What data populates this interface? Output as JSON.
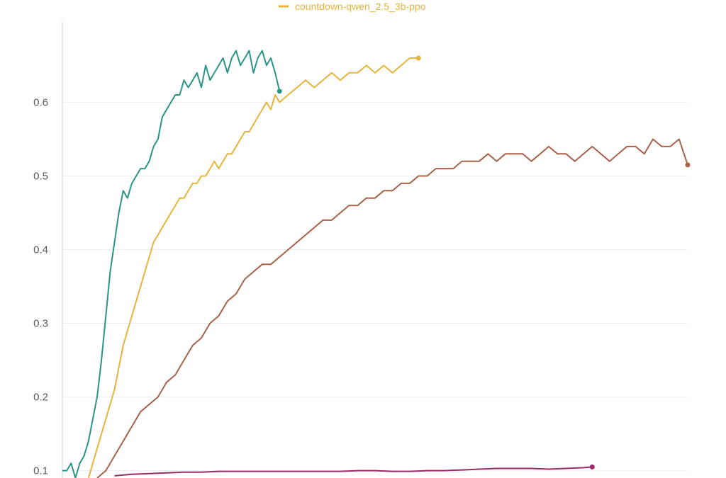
{
  "chart_data": {
    "type": "line",
    "ylim": [
      0.09,
      0.71
    ],
    "xlim": [
      0,
      360
    ],
    "yticks": [
      0.1,
      0.2,
      0.3,
      0.4,
      0.5,
      0.6
    ],
    "ytick_labels": [
      "0.1",
      "0.2",
      "0.3",
      "0.4",
      "0.5",
      "0.6"
    ],
    "grid": true,
    "legend": {
      "entries": [
        "countdown-qwen_2.5_3b-ppo"
      ],
      "placement": "top-center"
    },
    "series": [
      {
        "name": "",
        "color": "#2a9587",
        "x": [
          0,
          2.5,
          5,
          7.5,
          10,
          12.5,
          15,
          17.5,
          20,
          22.5,
          25,
          27.5,
          30,
          32.5,
          35,
          37.5,
          40,
          42.5,
          45,
          47.5,
          50,
          52.5,
          55,
          57.5,
          60,
          62.5,
          65,
          67.5,
          70,
          72.5,
          75,
          77.5,
          80,
          82.5,
          85,
          87.5,
          90,
          92.5,
          95,
          97.5,
          100,
          102.5,
          105,
          107.5,
          110,
          112.5,
          115,
          117.5,
          120,
          122.5,
          125
        ],
        "values": [
          0.1,
          0.1,
          0.11,
          0.09,
          0.11,
          0.12,
          0.14,
          0.17,
          0.2,
          0.25,
          0.31,
          0.37,
          0.41,
          0.45,
          0.48,
          0.47,
          0.49,
          0.5,
          0.51,
          0.51,
          0.52,
          0.54,
          0.55,
          0.58,
          0.59,
          0.6,
          0.61,
          0.61,
          0.63,
          0.62,
          0.63,
          0.64,
          0.62,
          0.65,
          0.63,
          0.64,
          0.65,
          0.66,
          0.64,
          0.66,
          0.67,
          0.65,
          0.66,
          0.67,
          0.64,
          0.66,
          0.67,
          0.65,
          0.66,
          0.64,
          0.615
        ]
      },
      {
        "name": "countdown-qwen_2.5_3b-ppo",
        "color": "#e6b53a",
        "x": [
          15,
          17.5,
          20,
          22.5,
          25,
          27.5,
          30,
          32.5,
          35,
          37.5,
          40,
          42.5,
          45,
          47.5,
          50,
          52.5,
          55,
          57.5,
          60,
          62.5,
          65,
          67.5,
          70,
          72.5,
          75,
          77.5,
          80,
          82.5,
          85,
          87.5,
          90,
          92.5,
          95,
          97.5,
          100,
          102.5,
          105,
          107.5,
          110,
          112.5,
          115,
          117.5,
          120,
          122.5,
          125,
          130,
          135,
          140,
          145,
          150,
          155,
          160,
          165,
          170,
          175,
          180,
          185,
          190,
          195,
          200,
          205
        ],
        "values": [
          0.09,
          0.11,
          0.13,
          0.15,
          0.17,
          0.19,
          0.21,
          0.24,
          0.27,
          0.29,
          0.31,
          0.33,
          0.35,
          0.37,
          0.39,
          0.41,
          0.42,
          0.43,
          0.44,
          0.45,
          0.46,
          0.47,
          0.47,
          0.48,
          0.49,
          0.49,
          0.5,
          0.5,
          0.51,
          0.52,
          0.51,
          0.52,
          0.53,
          0.53,
          0.54,
          0.55,
          0.56,
          0.56,
          0.57,
          0.58,
          0.59,
          0.6,
          0.59,
          0.61,
          0.6,
          0.61,
          0.62,
          0.63,
          0.62,
          0.63,
          0.64,
          0.63,
          0.64,
          0.64,
          0.65,
          0.64,
          0.65,
          0.64,
          0.65,
          0.66,
          0.66
        ]
      },
      {
        "name": "",
        "color": "#a8624a",
        "x": [
          20,
          25,
          30,
          35,
          40,
          45,
          50,
          55,
          60,
          65,
          70,
          75,
          80,
          85,
          90,
          95,
          100,
          105,
          110,
          115,
          120,
          125,
          130,
          135,
          140,
          145,
          150,
          155,
          160,
          165,
          170,
          175,
          180,
          185,
          190,
          195,
          200,
          205,
          210,
          215,
          220,
          225,
          230,
          235,
          240,
          245,
          250,
          255,
          260,
          265,
          270,
          275,
          280,
          285,
          290,
          295,
          300,
          305,
          310,
          315,
          320,
          325,
          330,
          335,
          340,
          345,
          350,
          355,
          360
        ],
        "values": [
          0.09,
          0.1,
          0.12,
          0.14,
          0.16,
          0.18,
          0.19,
          0.2,
          0.22,
          0.23,
          0.25,
          0.27,
          0.28,
          0.3,
          0.31,
          0.33,
          0.34,
          0.36,
          0.37,
          0.38,
          0.38,
          0.39,
          0.4,
          0.41,
          0.42,
          0.43,
          0.44,
          0.44,
          0.45,
          0.46,
          0.46,
          0.47,
          0.47,
          0.48,
          0.48,
          0.49,
          0.49,
          0.5,
          0.5,
          0.51,
          0.51,
          0.51,
          0.52,
          0.52,
          0.52,
          0.53,
          0.52,
          0.53,
          0.53,
          0.53,
          0.52,
          0.53,
          0.54,
          0.53,
          0.53,
          0.52,
          0.53,
          0.54,
          0.53,
          0.52,
          0.53,
          0.54,
          0.54,
          0.53,
          0.55,
          0.54,
          0.54,
          0.55,
          0.515
        ]
      },
      {
        "name": "",
        "color": "#9b2a6b",
        "x": [
          30,
          40,
          50,
          60,
          70,
          80,
          90,
          100,
          110,
          120,
          130,
          140,
          150,
          160,
          170,
          180,
          190,
          200,
          210,
          220,
          230,
          240,
          250,
          260,
          270,
          280,
          290,
          300,
          305
        ],
        "values": [
          0.093,
          0.095,
          0.096,
          0.097,
          0.098,
          0.098,
          0.099,
          0.099,
          0.099,
          0.099,
          0.099,
          0.099,
          0.099,
          0.099,
          0.1,
          0.1,
          0.099,
          0.099,
          0.1,
          0.1,
          0.101,
          0.102,
          0.103,
          0.103,
          0.103,
          0.102,
          0.103,
          0.104,
          0.105
        ]
      }
    ]
  }
}
